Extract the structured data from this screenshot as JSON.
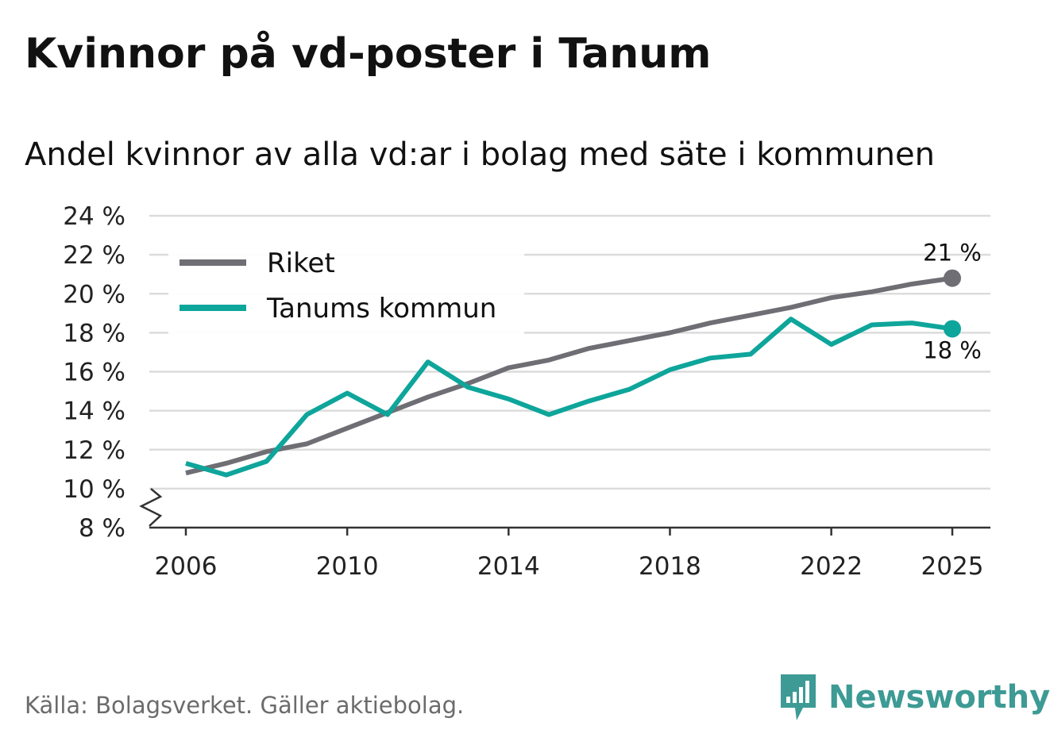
{
  "header": {
    "title": "Kvinnor på vd-poster i Tanum",
    "subtitle": "Andel kvinnor av alla vd:ar i bolag med säte i kommunen"
  },
  "footer": {
    "source": "Källa: Bolagsverket. Gäller aktiebolag.",
    "brand": "Newsworthy",
    "brand_icon": "bar-chart-speech-bubble-icon"
  },
  "colors": {
    "riket": "#6f6e74",
    "tanum": "#0ea59b",
    "grid": "#dcdcdc",
    "axis": "#333333",
    "brand": "#3d9a94"
  },
  "chart_data": {
    "type": "line",
    "title": "Kvinnor på vd-poster i Tanum",
    "subtitle": "Andel kvinnor av alla vd:ar i bolag med säte i kommunen",
    "xlabel": "",
    "ylabel": "",
    "x": [
      2006,
      2007,
      2008,
      2009,
      2010,
      2011,
      2012,
      2013,
      2014,
      2015,
      2016,
      2017,
      2018,
      2019,
      2020,
      2021,
      2022,
      2023,
      2024,
      2025
    ],
    "x_ticks": [
      2006,
      2010,
      2014,
      2018,
      2022,
      2025
    ],
    "x_tick_labels": [
      "2006",
      "2010",
      "2014",
      "2018",
      "2022",
      "2025"
    ],
    "xlim": [
      2005,
      2026
    ],
    "ylim": [
      8,
      24
    ],
    "y_ticks": [
      8,
      10,
      12,
      14,
      16,
      18,
      20,
      22,
      24
    ],
    "y_tick_labels": [
      "8 %",
      "10 %",
      "12 %",
      "14 %",
      "16 %",
      "18 %",
      "20 %",
      "22 %",
      "24 %"
    ],
    "axis_break": "between 8 % and 10 %",
    "grid": true,
    "legend_position": "top-left",
    "series": [
      {
        "name": "Riket",
        "color": "#6f6e74",
        "values": [
          10.8,
          11.3,
          11.9,
          12.3,
          13.1,
          13.9,
          14.7,
          15.4,
          16.2,
          16.6,
          17.2,
          17.6,
          18.0,
          18.5,
          18.9,
          19.3,
          19.8,
          20.1,
          20.5,
          20.8
        ],
        "end_label": "21 %"
      },
      {
        "name": "Tanums kommun",
        "color": "#0ea59b",
        "values": [
          11.3,
          10.7,
          11.4,
          13.8,
          14.9,
          13.8,
          16.5,
          15.2,
          14.6,
          13.8,
          14.5,
          15.1,
          16.1,
          16.7,
          16.9,
          18.7,
          17.4,
          18.4,
          18.5,
          18.2
        ],
        "end_label": "18 %"
      }
    ]
  }
}
